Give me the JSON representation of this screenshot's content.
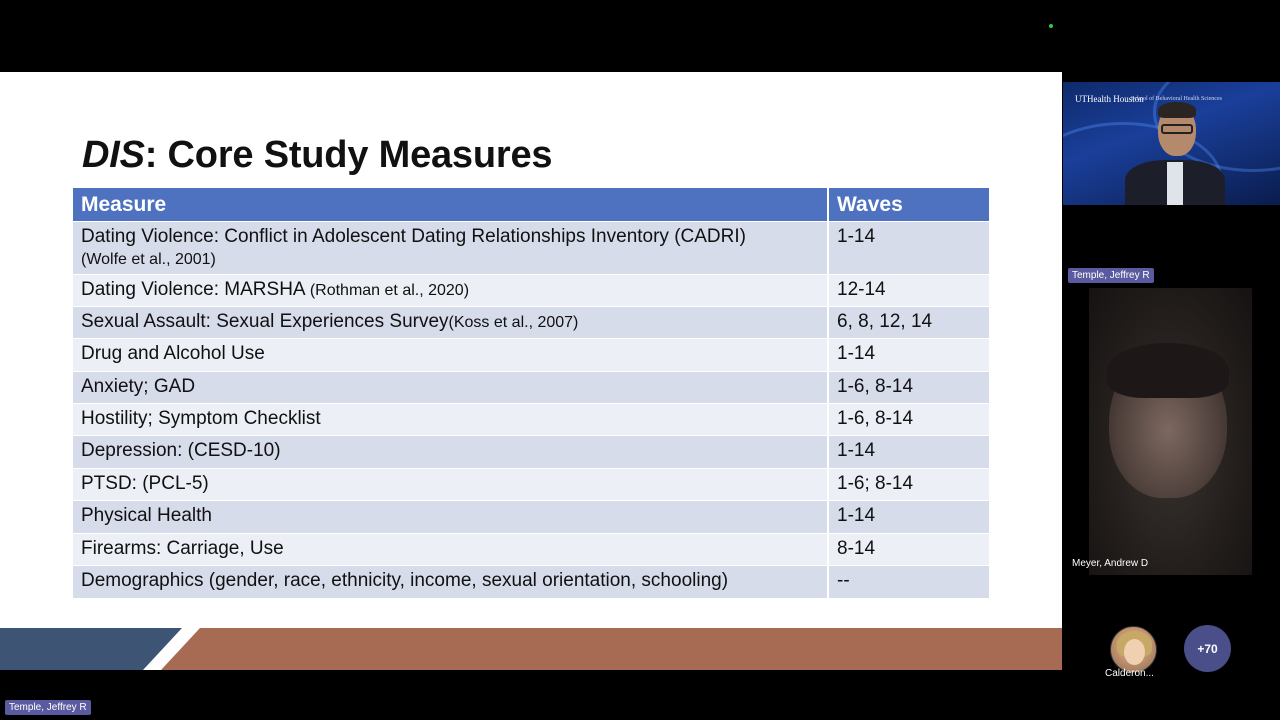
{
  "slide": {
    "title_italic": "DIS",
    "title_rest": ": Core Study Measures",
    "table": {
      "headers": [
        "Measure",
        "Waves"
      ],
      "rows": [
        {
          "measure": "Dating Violence: Conflict in Adolescent Dating Relationships Inventory (CADRI)",
          "cite": "(Wolfe et al., 2001)",
          "waves": "1-14"
        },
        {
          "measure": "Dating Violence: MARSHA ",
          "cite": "(Rothman et al., 2020)",
          "waves": "12-14"
        },
        {
          "measure": "Sexual Assault: Sexual Experiences Survey",
          "cite": "(Koss et al., 2007)",
          "waves": "6, 8, 12, 14"
        },
        {
          "measure": "Drug and Alcohol Use",
          "cite": "",
          "waves": "1-14"
        },
        {
          "measure": "Anxiety; GAD",
          "cite": "",
          "waves": "1-6, 8-14"
        },
        {
          "measure": "Hostility; Symptom Checklist",
          "cite": "",
          "waves": "1-6, 8-14"
        },
        {
          "measure": "Depression: (CESD-10)",
          "cite": "",
          "waves": "1-14"
        },
        {
          "measure": "PTSD: (PCL-5)",
          "cite": "",
          "waves": "1-6; 8-14"
        },
        {
          "measure": "Physical Health",
          "cite": "",
          "waves": "1-14"
        },
        {
          "measure": "Firearms: Carriage, Use",
          "cite": "",
          "waves": "8-14"
        },
        {
          "measure": "Demographics (gender, race, ethnicity, income, sexual orientation, schooling)",
          "cite": "",
          "waves": "--"
        }
      ]
    }
  },
  "participants": {
    "presenter_logo": "UTHealth Houston",
    "presenter_logo_sub": "School of Behavioral Health Sciences",
    "temple_label": "Temple, Jeffrey R",
    "meyer_label": "Meyer, Andrew D",
    "calderon_label": "Calderon...",
    "more_count": "+70"
  },
  "screen_share_label": "Temple, Jeffrey R",
  "colors": {
    "header_blue": "#4f72c0",
    "row_odd": "#d6dcea",
    "row_even": "#ecf0f6",
    "footer_brown": "#a66b52",
    "footer_navy": "#3e5474",
    "name_tag": "#5a5aa0"
  }
}
